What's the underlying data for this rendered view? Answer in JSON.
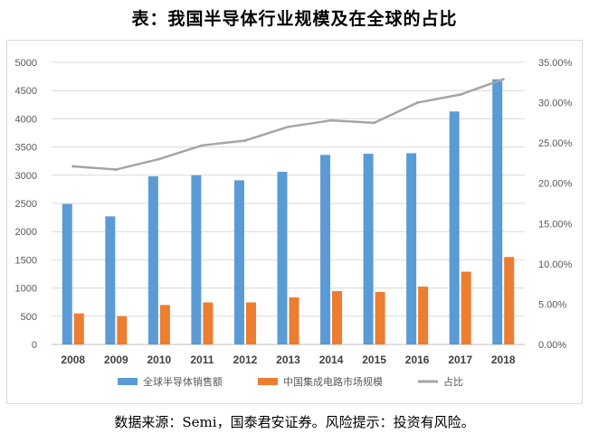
{
  "header": {
    "title": "表：我国半导体行业规模及在全球的占比"
  },
  "footer": {
    "source": "数据来源：Semi，国泰君安证券。风险提示：投资有风险。"
  },
  "colors": {
    "global_bar": "#5b9bd5",
    "china_bar": "#ed7d31",
    "share_line": "#a5a5a5",
    "axis_text": "#595959",
    "grid": "#d9d9d9"
  },
  "chart_data": {
    "type": "bar",
    "categories": [
      "2008",
      "2009",
      "2010",
      "2011",
      "2012",
      "2013",
      "2014",
      "2015",
      "2016",
      "2017",
      "2018"
    ],
    "series": [
      {
        "name": "全球半导体销售额",
        "kind": "bar",
        "axis": "left",
        "values": [
          2490,
          2270,
          2980,
          3000,
          2910,
          3060,
          3360,
          3380,
          3390,
          4130,
          4700
        ]
      },
      {
        "name": "中国集成电路市场规模",
        "kind": "bar",
        "axis": "left",
        "values": [
          550,
          500,
          700,
          745,
          745,
          835,
          945,
          930,
          1025,
          1290,
          1550
        ]
      },
      {
        "name": "占比",
        "kind": "line",
        "axis": "right",
        "values": [
          22.1,
          21.7,
          23.0,
          24.7,
          25.3,
          27.0,
          27.8,
          27.5,
          30.0,
          31.0,
          32.9
        ]
      }
    ],
    "left_axis": {
      "min": 0,
      "max": 5000,
      "step": 500,
      "ticks": [
        "0",
        "500",
        "1000",
        "1500",
        "2000",
        "2500",
        "3000",
        "3500",
        "4000",
        "4500",
        "5000"
      ]
    },
    "right_axis": {
      "min": 0,
      "max": 35,
      "step": 5,
      "ticks": [
        "0.00%",
        "5.00%",
        "10.00%",
        "15.00%",
        "20.00%",
        "25.00%",
        "30.00%",
        "35.00%"
      ]
    },
    "grid": true,
    "legend": "bottom"
  }
}
